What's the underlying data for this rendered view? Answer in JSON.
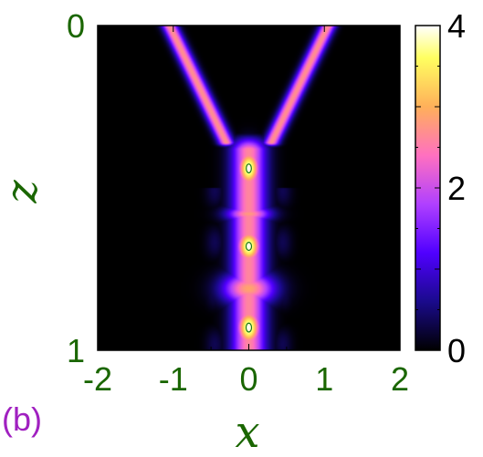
{
  "chart_data": {
    "type": "heatmap",
    "panel_label": "(b)",
    "xlabel": "x",
    "ylabel": "z",
    "xlim": [
      -2,
      2
    ],
    "ylim": [
      0,
      1
    ],
    "y_inverted": true,
    "x_ticks": [
      -2,
      -1,
      0,
      1,
      2
    ],
    "x_tick_labels": [
      "-2",
      "-1",
      "0",
      "1",
      "2"
    ],
    "y_ticks": [
      0,
      1
    ],
    "y_tick_labels": [
      "0",
      "1"
    ],
    "colorbar": {
      "range": [
        0,
        4
      ],
      "ticks": [
        0,
        2,
        4
      ],
      "tick_labels": [
        "0",
        "2",
        "4"
      ],
      "colormap": [
        "#000000",
        "#1a0a8c",
        "#5000ff",
        "#b040ff",
        "#ff70c0",
        "#ffb05a",
        "#ffff60",
        "#ffffff"
      ]
    },
    "features": {
      "incoming_beams": [
        {
          "name": "left-beam",
          "x_start": -1.05,
          "z_start": 0.0,
          "x_end": -0.3,
          "z_end": 0.36,
          "intensity": 2.7,
          "width": 0.13
        },
        {
          "name": "right-beam",
          "x_start": 1.05,
          "z_start": 0.0,
          "x_end": 0.3,
          "z_end": 0.36,
          "intensity": 2.7,
          "width": 0.13
        }
      ],
      "central_blobs": [
        {
          "x": 0.0,
          "z": 0.44,
          "intensity": 4.0,
          "width_x": 0.15,
          "width_z": 0.06
        },
        {
          "x": 0.0,
          "z": 0.58,
          "intensity": 2.8,
          "width_x": 0.28,
          "width_z": 0.025
        },
        {
          "x": 0.0,
          "z": 0.68,
          "intensity": 4.0,
          "width_x": 0.16,
          "width_z": 0.055
        },
        {
          "x": 0.0,
          "z": 0.81,
          "intensity": 2.9,
          "width_x": 0.34,
          "width_z": 0.05
        },
        {
          "x": 0.0,
          "z": 0.93,
          "intensity": 4.0,
          "width_x": 0.16,
          "width_z": 0.06
        }
      ],
      "contour_level": 3.8
    }
  }
}
